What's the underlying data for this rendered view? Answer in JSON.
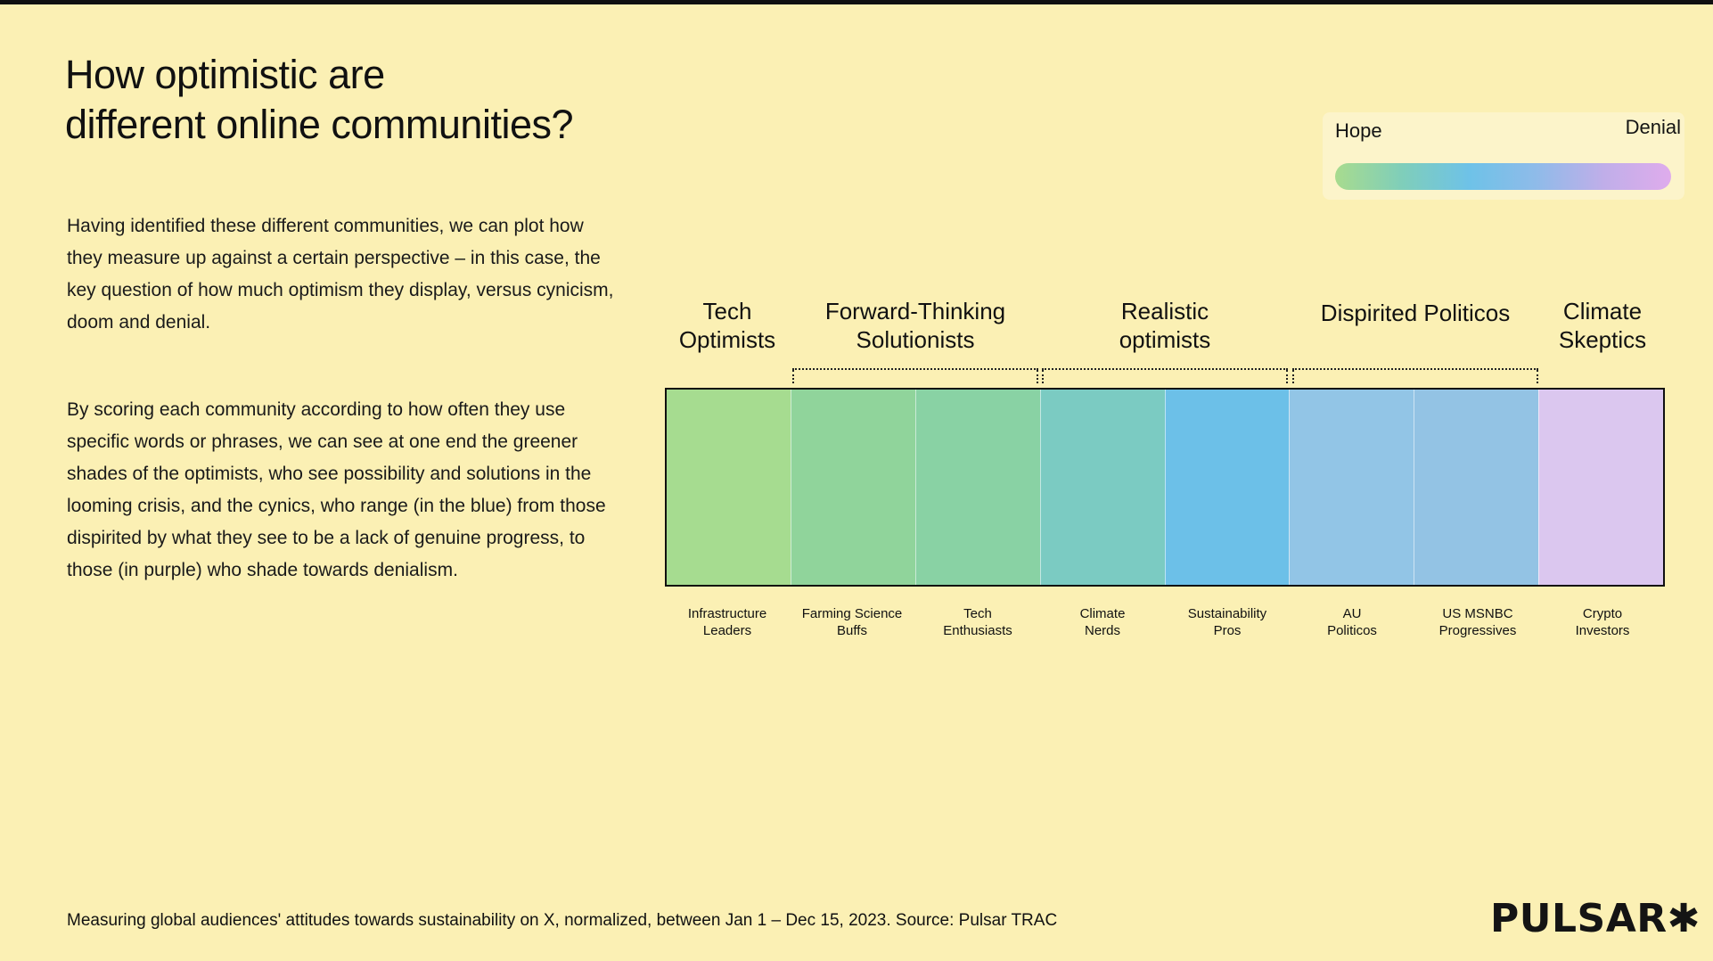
{
  "page": {
    "background_color": "#FBF0B4",
    "title": "How optimistic are\ndifferent online communities?",
    "paragraphs": [
      "Having identified these different communities, we can plot how they measure up against a certain perspective – in this case, the key question of how much optimism they display, versus cynicism, doom and denial.",
      "By scoring each community according to how often they use specific words or phrases, we can see at one end the greener shades of the optimists, who see possibility and solutions in the looming crisis, and the cynics, who range (in the blue) from those dispirited by what they see to be a lack of genuine progress, to those (in purple) who shade towards denialism."
    ],
    "source_note": "Measuring global audiences' attitudes towards sustainability on X, normalized, between Jan 1 – Dec 15, 2023. Source: Pulsar TRAC",
    "logo_text": "PULSAR✱"
  },
  "legend": {
    "left_label": "Hope",
    "right_label": "Denial",
    "gradient_colors": [
      "#A8DB8E",
      "#7FCEBA",
      "#6EC2E8",
      "#8FBBE9",
      "#C0AEE9",
      "#DFACEC"
    ]
  },
  "chart_data": {
    "type": "heatmap",
    "title": "How optimistic are different online communities?",
    "scale": {
      "left_end": "Hope",
      "right_end": "Denial"
    },
    "legend_position": "top-right",
    "groups": [
      {
        "label": "Tech\nOptimists",
        "segment_indices": [
          0
        ],
        "bracket": false
      },
      {
        "label": "Forward-Thinking\nSolutionists",
        "segment_indices": [
          1,
          2
        ],
        "bracket": true
      },
      {
        "label": "Realistic\noptimists",
        "segment_indices": [
          3,
          4
        ],
        "bracket": true
      },
      {
        "label": "Dispirited Politicos",
        "segment_indices": [
          5,
          6
        ],
        "bracket": true
      },
      {
        "label": "Climate\nSkeptics",
        "segment_indices": [
          7
        ],
        "bracket": false
      }
    ],
    "segments": [
      {
        "label": "Infrastructure\nLeaders",
        "group": "Tech Optimists",
        "color": "#A6DC90"
      },
      {
        "label": "Farming Science\nBuffs",
        "group": "Forward-Thinking Solutionists",
        "color": "#90D49B"
      },
      {
        "label": "Tech\nEnthusiasts",
        "group": "Forward-Thinking Solutionists",
        "color": "#89D2A4"
      },
      {
        "label": "Climate\nNerds",
        "group": "Realistic optimists",
        "color": "#7BCBC2"
      },
      {
        "label": "Sustainability\nPros",
        "group": "Realistic optimists",
        "color": "#6CC0E8"
      },
      {
        "label": "AU\nPoliticos",
        "group": "Dispirited Politicos",
        "color": "#92C5E6"
      },
      {
        "label": "US MSNBC\nProgressives",
        "group": "Dispirited Politicos",
        "color": "#93C3E4"
      },
      {
        "label": "Crypto\nInvestors",
        "group": "Climate Skeptics",
        "color": "#DBC7EF"
      }
    ]
  }
}
